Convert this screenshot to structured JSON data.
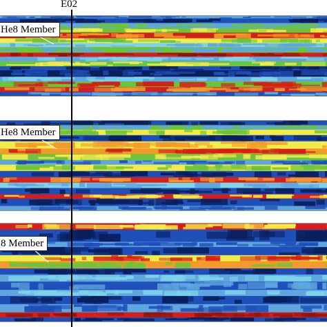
{
  "well": {
    "label": "E02"
  },
  "palette": {
    "navy": "#0a1f5c",
    "blue": "#1f4fb8",
    "lightblue": "#5fa6df",
    "cyan": "#7fd3e8",
    "green": "#6cc43a",
    "yellow": "#f2ec4a",
    "orange": "#f39a2a",
    "red": "#d51f1a",
    "darkred": "#8e1410"
  },
  "panels": [
    {
      "label": "He8 Member",
      "bands": [
        [
          "lightblue",
          "blue",
          3
        ],
        [
          "blue",
          "navy",
          6
        ],
        [
          "lightblue",
          "green",
          6
        ],
        [
          "green",
          "yellow",
          6
        ],
        [
          "red",
          "orange",
          7
        ],
        [
          "yellow",
          "green",
          6
        ],
        [
          "cyan",
          "lightblue",
          5
        ],
        [
          "green",
          "lightblue",
          7
        ],
        [
          "red",
          "darkred",
          5
        ],
        [
          "lightblue",
          "cyan",
          6
        ],
        [
          "green",
          "yellow",
          6
        ],
        [
          "blue",
          "navy",
          5
        ],
        [
          "navy",
          "blue",
          8
        ],
        [
          "lightblue",
          "cyan",
          6
        ],
        [
          "green",
          "red",
          7
        ],
        [
          "red",
          "orange",
          6
        ],
        [
          "blue",
          "lightblue",
          5
        ]
      ]
    },
    {
      "label": "He8 Member",
      "bands": [
        [
          "blue",
          "navy",
          5
        ],
        [
          "green",
          "lightblue",
          5
        ],
        [
          "yellow",
          "green",
          6
        ],
        [
          "blue",
          "navy",
          7
        ],
        [
          "yellow",
          "orange",
          8
        ],
        [
          "orange",
          "red",
          6
        ],
        [
          "green",
          "yellow",
          7
        ],
        [
          "lightblue",
          "blue",
          5
        ],
        [
          "yellow",
          "green",
          7
        ],
        [
          "blue",
          "navy",
          7
        ],
        [
          "red",
          "orange",
          6
        ],
        [
          "cyan",
          "lightblue",
          6
        ],
        [
          "blue",
          "navy",
          7
        ],
        [
          "red",
          "yellow",
          5
        ],
        [
          "blue",
          "navy",
          8
        ],
        [
          "lightblue",
          "blue",
          5
        ]
      ]
    },
    {
      "label": "8 Member",
      "bands": [
        [
          "red",
          "yellow",
          6
        ],
        [
          "blue",
          "navy",
          12
        ],
        [
          "lightblue",
          "blue",
          5
        ],
        [
          "blue",
          "navy",
          8
        ],
        [
          "yellow",
          "red",
          6
        ],
        [
          "orange",
          "green",
          7
        ],
        [
          "blue",
          "navy",
          6
        ],
        [
          "lightblue",
          "cyan",
          7
        ],
        [
          "blue",
          "lightblue",
          8
        ],
        [
          "lightblue",
          "cyan",
          6
        ],
        [
          "blue",
          "navy",
          8
        ],
        [
          "lightblue",
          "blue",
          8
        ],
        [
          "red",
          "darkred",
          5
        ],
        [
          "blue",
          "navy",
          4
        ]
      ]
    }
  ]
}
